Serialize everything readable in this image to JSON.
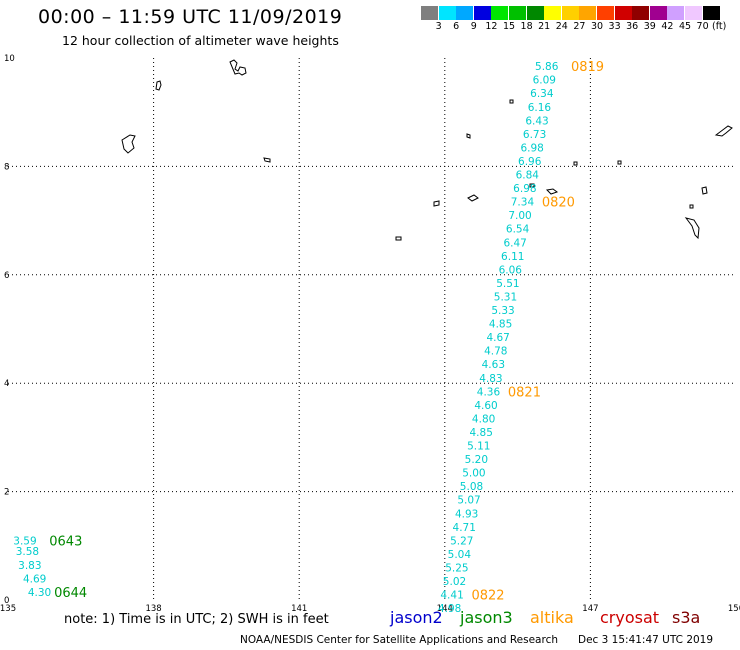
{
  "title": "00:00 – 11:59 UTC 11/09/2019",
  "subtitle": "12 hour collection of altimeter wave heights",
  "legend": {
    "colors": [
      "#7f7f7f",
      "#00e5ff",
      "#00a8ff",
      "#0000e0",
      "#00e600",
      "#00c000",
      "#008800",
      "#ffff00",
      "#ffd000",
      "#ffa500",
      "#ff4000",
      "#d00000",
      "#900000",
      "#a00090",
      "#d0a0ff",
      "#f0c8ff",
      "#000000"
    ],
    "labels": [
      "3",
      "6",
      "9",
      "12",
      "15",
      "18",
      "21",
      "24",
      "27",
      "30",
      "33",
      "36",
      "39",
      "42",
      "45",
      "70"
    ],
    "unit": "(ft)"
  },
  "axes": {
    "x_ticks": [
      "135",
      "138",
      "141",
      "144",
      "147",
      "150"
    ],
    "y_ticks": [
      "0",
      "2",
      "4",
      "6",
      "8",
      "10"
    ]
  },
  "colors": {
    "altika": "#ff9900",
    "jason3": "#008800",
    "swh": "#00cccc"
  },
  "swh_track_altika": [
    {
      "v": "5.86",
      "lon": 146.1,
      "lat": 9.85
    },
    {
      "v": "6.09",
      "lon": 146.05,
      "lat": 9.6
    },
    {
      "v": "6.34",
      "lon": 146.0,
      "lat": 9.35
    },
    {
      "v": "6.16",
      "lon": 145.95,
      "lat": 9.1
    },
    {
      "v": "6.43",
      "lon": 145.9,
      "lat": 8.85
    },
    {
      "v": "6.73",
      "lon": 145.85,
      "lat": 8.6
    },
    {
      "v": "6.98",
      "lon": 145.8,
      "lat": 8.35
    },
    {
      "v": "6.96",
      "lon": 145.75,
      "lat": 8.1
    },
    {
      "v": "6.84",
      "lon": 145.7,
      "lat": 7.85
    },
    {
      "v": "6.98",
      "lon": 145.65,
      "lat": 7.6
    },
    {
      "v": "7.34",
      "lon": 145.6,
      "lat": 7.35
    },
    {
      "v": "7.00",
      "lon": 145.55,
      "lat": 7.1
    },
    {
      "v": "6.54",
      "lon": 145.5,
      "lat": 6.85
    },
    {
      "v": "6.47",
      "lon": 145.45,
      "lat": 6.6
    },
    {
      "v": "6.11",
      "lon": 145.4,
      "lat": 6.35
    },
    {
      "v": "6.06",
      "lon": 145.35,
      "lat": 6.1
    },
    {
      "v": "5.51",
      "lon": 145.3,
      "lat": 5.85
    },
    {
      "v": "5.31",
      "lon": 145.25,
      "lat": 5.6
    },
    {
      "v": "5.33",
      "lon": 145.2,
      "lat": 5.35
    },
    {
      "v": "4.85",
      "lon": 145.15,
      "lat": 5.1
    },
    {
      "v": "4.67",
      "lon": 145.1,
      "lat": 4.85
    },
    {
      "v": "4.78",
      "lon": 145.05,
      "lat": 4.6
    },
    {
      "v": "4.63",
      "lon": 145.0,
      "lat": 4.35
    },
    {
      "v": "4.83",
      "lon": 144.95,
      "lat": 4.1
    },
    {
      "v": "4.36",
      "lon": 144.9,
      "lat": 3.85
    },
    {
      "v": "4.60",
      "lon": 144.85,
      "lat": 3.6
    },
    {
      "v": "4.80",
      "lon": 144.8,
      "lat": 3.35
    },
    {
      "v": "4.85",
      "lon": 144.75,
      "lat": 3.1
    },
    {
      "v": "5.11",
      "lon": 144.7,
      "lat": 2.85
    },
    {
      "v": "5.20",
      "lon": 144.65,
      "lat": 2.6
    },
    {
      "v": "5.00",
      "lon": 144.6,
      "lat": 2.35
    },
    {
      "v": "5.08",
      "lon": 144.55,
      "lat": 2.1
    },
    {
      "v": "5.07",
      "lon": 144.5,
      "lat": 1.85
    },
    {
      "v": "4.93",
      "lon": 144.45,
      "lat": 1.6
    },
    {
      "v": "4.71",
      "lon": 144.4,
      "lat": 1.35
    },
    {
      "v": "5.27",
      "lon": 144.35,
      "lat": 1.1
    },
    {
      "v": "5.04",
      "lon": 144.3,
      "lat": 0.85
    },
    {
      "v": "5.25",
      "lon": 144.25,
      "lat": 0.6
    },
    {
      "v": "5.02",
      "lon": 144.2,
      "lat": 0.35
    },
    {
      "v": "4.41",
      "lon": 144.15,
      "lat": 0.1
    },
    {
      "v": "4.98",
      "lon": 144.1,
      "lat": -0.15
    }
  ],
  "swh_track_jason3": [
    {
      "v": "3.59",
      "lon": 135.35,
      "lat": 1.1
    },
    {
      "v": "3.58",
      "lon": 135.4,
      "lat": 0.9
    },
    {
      "v": "3.83",
      "lon": 135.45,
      "lat": 0.65
    },
    {
      "v": "4.69",
      "lon": 135.55,
      "lat": 0.4
    },
    {
      "v": "4.30",
      "lon": 135.65,
      "lat": 0.15
    }
  ],
  "time_labels": [
    {
      "t": "0819",
      "sat": "altika",
      "lon": 146.6,
      "lat": 9.85
    },
    {
      "t": "0820",
      "sat": "altika",
      "lon": 146.0,
      "lat": 7.35
    },
    {
      "t": "0821",
      "sat": "altika",
      "lon": 145.3,
      "lat": 3.85
    },
    {
      "t": "0822",
      "sat": "altika",
      "lon": 144.55,
      "lat": 0.1
    },
    {
      "t": "0643",
      "sat": "jason3",
      "lon": 135.85,
      "lat": 1.1
    },
    {
      "t": "0644",
      "sat": "jason3",
      "lon": 135.95,
      "lat": 0.15
    }
  ],
  "note": "note:  1) Time is in UTC;  2) SWH is in feet",
  "satellites": [
    {
      "name": "jason2",
      "color": "#0000cc"
    },
    {
      "name": "jason3",
      "color": "#008800"
    },
    {
      "name": "altika",
      "color": "#ff9900"
    },
    {
      "name": "cryosat",
      "color": "#cc0000"
    },
    {
      "name": "s3a",
      "color": "#800000"
    }
  ],
  "credit": "NOAA/NESDIS Center for Satellite Applications and Research",
  "timestamp": "Dec  3 15:41:47 UTC 2019"
}
